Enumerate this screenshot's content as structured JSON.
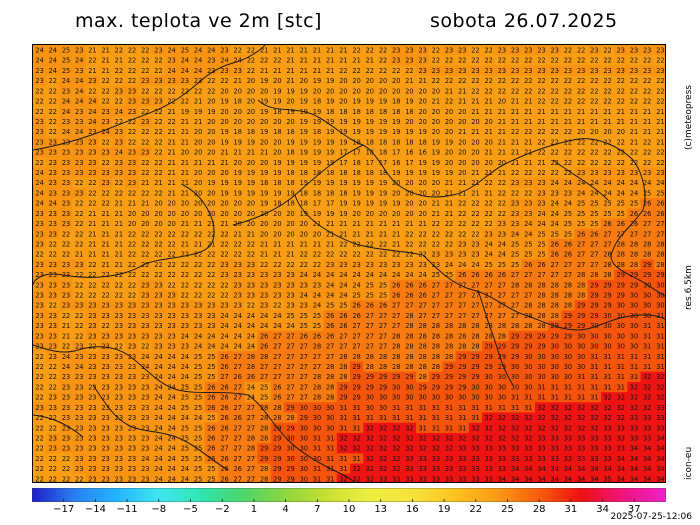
{
  "title_left": "max. teplota ve 2m [stc]",
  "title_right": "sobota 26.07.2025",
  "side_credit": "(c)meteopress",
  "side_resolution": "res.6.5km",
  "side_model": "icon-eu",
  "timestamp": "2025-07-25-12:06",
  "map": {
    "grid": {
      "rows": [
        "24 24 25 23 21 21 22 22 22 23 24 25 24 24 23 22 22 21 21 21 21 21 21 21 22 22 22 23 23 23 22 23 23 22 22 23 23 23 23 23 22 22 23 22 23 23 23 23",
        "24 24 25 24 22 21 21 22 22 22 23 24 24 23 24 24 22 22 22 21 21 21 21 21 21 21 22 23 23 23 22 22 22 22 22 22 22 22 22 22 22 22 22 22 22 22 22 22",
        "23 24 25 23 21 21 22 22 22 22 24 24 24 23 23 23 22 21 21 21 21 21 21 22 22 22 22 22 22 23 23 23 23 23 23 23 23 23 23 23 23 23 23 23 23 23 23 23",
        "23 22 24 24 23 22 22 22 23 23 23 23 23 22 22 21 20 19 20 21 20 19 19 20 20 20 20 20 21 21 22 22 22 22 22 22 22 22 22 22 22 22 22 22 22 22 22 22",
        "22 22 23 24 22 22 23 23 22 22 22 22 22 22 20 20 20 20 19 19 19 20 20 20 20 20 20 20 20 20 20 21 21 22 22 22 22 22 22 22 22 22 22 22 22 22 22 22",
        "22 22 24 24 24 22 22 23 23 23 22 22 21 20 19 18 20 19 19 20 19 18 19 20 19 19 19 18 19 20 21 22 21 21 21 20 21 21 22 22 22 22 22 22 22 22 22 22",
        "22 22 24 23 24 23 24 23 22 22 21 19 19 19 20 20 20 19 18 19 19 19 18 18 18 18 18 18 18 20 20 20 20 21 21 21 21 21 21 21 21 21 21 21 21 21 21 21",
        "23 22 23 23 24 23 22 22 23 22 22 21 21 20 20 20 20 20 20 20 19 19 19 19 19 19 19 19 20 20 20 20 20 20 20 21 21 21 21 21 21 21 21 21 21 21 21 21",
        "23 22 24 24 23 24 23 22 22 22 21 21 20 20 19 18 18 19 18 18 19 18 19 19 19 19 19 19 19 19 20 20 21 21 21 21 22 22 22 22 22 20 20 20 20 21 21 21",
        "23 23 23 23 23 22 23 22 22 22 21 21 20 20 19 19 19 20 20 19 19 19 19 19 18 18 18 18 18 18 19 19 20 20 20 21 21 21 22 22 22 22 22 22 22 21 22 21",
        "23 23 23 23 23 23 24 23 23 22 21 20 20 20 21 21 21 21 20 18 19 19 19 17 17 18 18 17 16 16 19 20 20 20 21 21 21 21 22 22 22 22 22 22 22 22 22 22",
        "22 23 23 23 23 22 23 23 22 22 21 21 21 21 21 20 20 20 19 19 19 19 19 17 18 17 17 16 17 19 19 20 20 20 20 20 21 21 21 22 22 22 22 22 22 22 22 22",
        "24 23 23 23 23 23 23 23 22 22 21 21 20 20 20 19 19 19 19 18 18 18 18 18 18 18 18 19 19 19 19 19 20 21 21 21 22 22 22 22 22 23 23 23 23 23 23 23",
        "24 23 23 22 22 23 22 23 21 21 21 21 20 19 19 19 19 18 18 18 19 19 19 19 19 19 19 20 20 20 20 21 21 21 22 22 23 23 23 24 24 24 24 24 24 24 24 24",
        "24 23 23 23 22 22 22 22 22 22 21 21 20 20 19 19 19 19 19 19 18 18 18 18 19 19 19 20 20 20 20 21 21 21 21 22 22 22 23 23 23 24 24 24 24 24 25 25",
        "24 24 23 22 22 22 21 21 21 20 20 20 20 20 20 20 20 19 18 18 18 17 17 19 19 19 19 19 20 20 21 21 22 22 22 22 23 23 23 24 24 25 25 25 25 25 26 26",
        "23 23 23 22 21 21 21 20 20 20 20 20 20 20 20 20 20 20 20 20 19 19 19 19 20 20 20 20 20 20 21 21 22 22 22 22 23 23 24 24 25 25 25 25 25 26 26 26",
        "23 23 23 22 21 21 21 20 20 20 20 21 21 21 21 20 20 20 20 20 20 21 21 21 21 21 21 21 21 21 22 22 22 22 22 23 23 24 24 24 25 25 25 26 26 26 27 27",
        "23 23 22 22 21 21 21 22 22 22 22 22 22 22 22 21 21 20 20 20 20 20 21 21 21 21 21 21 22 22 22 22 22 22 23 23 24 24 25 25 25 26 26 27 27 27 27 27",
        "23 22 22 22 21 21 21 22 22 22 22 21 21 21 22 22 22 21 21 21 21 21 21 22 22 22 22 21 22 22 22 22 23 23 24 24 25 25 25 26 26 27 27 27 28 28 28 28",
        "22 22 22 21 21 21 21 22 22 22 22 22 22 22 22 22 22 21 21 21 22 22 22 22 22 22 22 22 22 22 23 23 23 23 24 24 25 25 25 26 26 27 27 28 28 28 28 28",
        "23 23 23 23 22 21 21 22 22 22 22 22 22 22 23 23 23 22 22 22 22 22 23 23 23 23 23 23 23 23 23 24 24 24 25 25 25 26 26 27 27 27 27 28 28 28 29 28",
        "23 23 23 22 22 22 22 22 22 22 22 22 22 22 23 23 23 23 23 23 24 24 24 24 24 24 24 24 24 24 25 25 26 26 26 26 27 27 27 27 27 28 28 28 29 29 29 29",
        "23 23 23 22 22 22 22 22 23 23 22 22 22 22 22 23 23 23 23 23 23 23 24 24 24 25 25 26 26 26 27 27 27 27 27 27 28 28 28 28 28 28 29 29 29 29 30 30",
        "23 23 23 22 22 22 22 22 23 23 23 22 22 22 22 23 23 23 23 23 24 24 24 24 25 25 25 26 26 26 27 27 27 27 27 27 27 27 28 28 28 28 29 29 29 30 30 30",
        "23 22 23 23 23 23 23 23 23 23 23 23 23 23 23 23 22 23 22 23 23 24 25 25 26 26 26 27 27 27 27 27 27 27 27 27 27 28 28 28 28 29 29 29 30 30 30 30",
        "23 23 22 22 23 23 23 23 23 23 23 23 23 23 24 24 24 24 24 25 25 25 26 26 26 27 27 27 28 27 27 27 27 27 27 27 27 28 28 28 29 29 29 30 30 30 30 31",
        "23 23 21 22 23 22 23 23 23 23 23 23 23 23 24 24 24 24 24 24 25 25 26 26 27 27 27 27 28 28 28 28 28 28 28 28 28 28 28 29 29 29 30 30 30 30 31 31",
        "23 23 21 22 23 23 23 23 23 23 23 24 24 24 24 24 24 26 27 27 26 26 26 27 27 27 27 28 28 28 28 28 28 28 28 28 29 29 29 29 29 30 30 30 30 30 31 31",
        "23 23 22 23 22 23 22 23 22 23 23 23 24 24 24 24 24 26 27 27 27 28 27 27 27 27 27 28 28 28 28 28 28 28 29 29 29 29 29 30 30 30 30 30 30 30 31 31",
        "22 23 24 23 23 23 23 23 24 24 24 24 25 25 26 27 28 28 27 27 27 27 27 28 28 28 28 28 28 28 28 28 29 29 29 29 29 30 30 30 30 30 31 31 31 31 31 31",
        "22 22 24 24 23 23 23 23 24 24 24 24 25 25 26 27 28 27 27 27 27 27 28 28 29 28 28 28 28 28 28 29 29 29 29 29 30 30 30 30 30 30 31 31 31 31 31 31",
        "22 22 23 23 23 23 23 23 23 24 24 24 25 25 27 26 26 27 27 27 27 28 28 28 29 29 29 29 29 28 29 29 29 29 30 30 30 30 30 30 30 31 31 31 31 31 32 32",
        "22 22 23 23 23 23 23 23 23 24 24 25 25 26 26 27 24 25 26 27 27 28 28 29 29 29 29 30 30 29 29 29 29 30 30 30 30 30 31 31 31 31 31 31 31 32 32 32",
        "22 23 23 23 23 23 23 23 23 24 24 25 25 26 26 27 24 25 26 27 27 28 28 29 29 30 30 30 30 30 30 30 30 30 30 30 31 31 31 31 31 31 31 32 32 32 32 32",
        "23 23 23 23 23 23 23 23 23 24 24 25 25 26 26 27 27 28 28 29 30 30 30 31 31 30 30 31 31 31 31 31 31 31 31 31 31 31 32 32 32 32 32 32 32 32 32 33",
        "22 22 23 23 23 23 23 23 23 24 24 24 24 25 26 26 27 28 28 28 29 30 30 31 31 31 31 31 31 31 31 31 31 31 32 32 32 32 32 32 32 32 32 32 32 33 33 33",
        "22 22 23 23 23 23 23 23 23 24 24 25 25 26 26 27 27 28 29 29 30 30 30 31 31 32 32 32 32 31 31 31 31 32 32 32 32 32 32 32 32 32 32 33 33 33 33 33",
        "22 23 23 23 23 23 23 23 23 24 24 25 25 26 27 27 28 28 29 30 30 31 31 32 32 32 32 32 32 32 32 32 32 32 32 32 32 32 33 33 33 33 33 33 33 33 33 34",
        "22 23 23 23 23 23 23 23 23 24 24 25 25 26 27 27 28 29 29 30 30 31 31 32 32 32 32 32 32 32 32 32 33 33 33 33 33 33 33 33 33 33 33 33 33 34 34 34",
        "22 22 22 23 23 23 23 23 24 24 24 25 25 26 26 27 27 29 29 30 30 30 31 31 31 32 32 32 33 33 33 33 33 33 33 33 33 33 33 33 33 33 33 33 34 34 34 34",
        "22 22 22 23 23 23 23 23 23 24 24 24 25 25 26 26 27 28 29 29 30 31 31 31 32 32 32 32 33 33 33 33 33 33 33 33 34 34 34 34 34 34 34 34 34 34 34 34",
        "22 22 22 22 23 23 23 23 23 24 24 24 25 25 26 27 27 28 29 29 30 31 31 32 32 32 33 33 33 33 33 33 33 33 33 34 34 34 34 34 34 34 34 35 34 34 34 34"
      ]
    }
  },
  "legend": {
    "stops": [
      {
        "value": -20,
        "color": "#1e1ec8"
      },
      {
        "value": -16,
        "color": "#2a7ff0"
      },
      {
        "value": -12,
        "color": "#24b4ff"
      },
      {
        "value": -8,
        "color": "#3fe6f0"
      },
      {
        "value": -4,
        "color": "#2ee6b0"
      },
      {
        "value": 0,
        "color": "#4fd66a"
      },
      {
        "value": 4,
        "color": "#8ed63e"
      },
      {
        "value": 8,
        "color": "#c9e032"
      },
      {
        "value": 12,
        "color": "#eef040"
      },
      {
        "value": 16,
        "color": "#f7e23c"
      },
      {
        "value": 20,
        "color": "#fbc41e"
      },
      {
        "value": 24,
        "color": "#fb9a14"
      },
      {
        "value": 28,
        "color": "#f75c0e"
      },
      {
        "value": 32,
        "color": "#f01010"
      },
      {
        "value": 36,
        "color": "#f0147e"
      },
      {
        "value": 40,
        "color": "#ee22cc"
      }
    ],
    "tick_labels": [
      "−17",
      "−14",
      "−11",
      "−8",
      "−5",
      "−2",
      "1",
      "4",
      "7",
      "10",
      "13",
      "16",
      "19",
      "22",
      "25",
      "28",
      "31",
      "34",
      "37"
    ],
    "tick_values": [
      -17,
      -14,
      -11,
      -8,
      -5,
      -2,
      1,
      4,
      7,
      10,
      13,
      16,
      19,
      22,
      25,
      28,
      31,
      34,
      37
    ]
  },
  "colors": {
    "t18": "#f99e14",
    "t22": "#f99412",
    "t26": "#f77b10",
    "t30": "#f5540c",
    "t34": "#ee1414"
  }
}
